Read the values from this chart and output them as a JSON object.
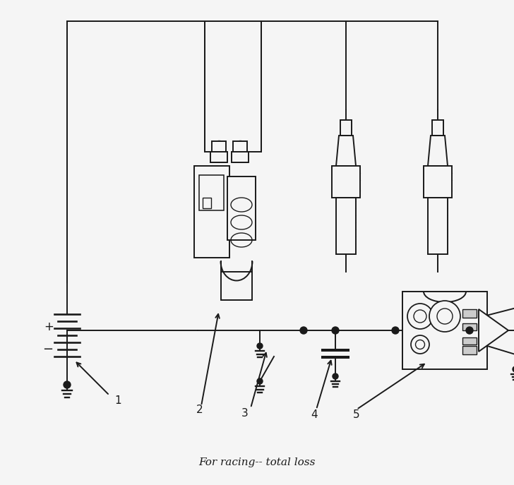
{
  "title": "For racing-- total loss",
  "title_fontsize": 11,
  "background_color": "#f5f5f5",
  "line_color": "#1a1a1a",
  "figsize": [
    7.28,
    6.87
  ],
  "dpi": 100
}
